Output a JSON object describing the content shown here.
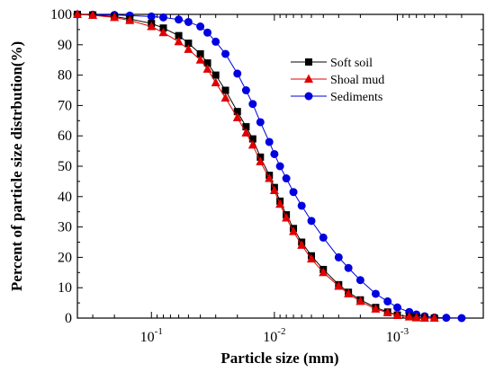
{
  "chart_data": {
    "type": "scatter",
    "title": "",
    "xlabel": "Particle size (mm)",
    "ylabel": "Percent of particle size distrbution(%)",
    "x_scale": "log",
    "x_reversed": true,
    "xlim": [
      0.4,
      0.0002
    ],
    "ylim": [
      0,
      100
    ],
    "x_ticks": [
      {
        "value": 0.1,
        "base": "10",
        "exp": "-1"
      },
      {
        "value": 0.01,
        "base": "10",
        "exp": "-2"
      },
      {
        "value": 0.001,
        "base": "10",
        "exp": "-3"
      }
    ],
    "y_ticks": [
      0,
      10,
      20,
      30,
      40,
      50,
      60,
      70,
      80,
      90,
      100
    ],
    "grid": false,
    "legend_position": "top-right",
    "series": [
      {
        "name": "Soft soil",
        "color": "#000000",
        "marker": "square",
        "x": [
          0.4,
          0.3,
          0.2,
          0.15,
          0.1,
          0.08,
          0.06,
          0.05,
          0.04,
          0.035,
          0.03,
          0.025,
          0.02,
          0.017,
          0.015,
          0.013,
          0.011,
          0.01,
          0.009,
          0.008,
          0.007,
          0.006,
          0.005,
          0.004,
          0.003,
          0.0025,
          0.002,
          0.0015,
          0.0012,
          0.001,
          0.0008,
          0.0007,
          0.0006,
          0.0005
        ],
        "y": [
          100,
          99.8,
          99.3,
          98.5,
          97,
          95.5,
          93,
          90.5,
          87,
          84,
          80,
          75,
          68,
          63,
          59,
          53,
          47,
          43,
          38.5,
          34,
          29.5,
          25,
          20.5,
          16,
          11,
          8.5,
          6,
          3.5,
          2,
          1,
          0.5,
          0.2,
          0.1,
          0
        ]
      },
      {
        "name": "Shoal mud",
        "color": "#e00000",
        "marker": "triangle",
        "x": [
          0.4,
          0.3,
          0.2,
          0.15,
          0.1,
          0.08,
          0.06,
          0.05,
          0.04,
          0.035,
          0.03,
          0.025,
          0.02,
          0.017,
          0.015,
          0.013,
          0.011,
          0.01,
          0.009,
          0.008,
          0.007,
          0.006,
          0.005,
          0.004,
          0.003,
          0.0025,
          0.002,
          0.0015,
          0.0012,
          0.001,
          0.0008,
          0.0007,
          0.0006,
          0.0005
        ],
        "y": [
          100,
          99.7,
          99,
          98,
          96,
          94,
          91,
          88.5,
          85,
          82,
          77.5,
          72.5,
          66,
          61,
          57,
          51.5,
          46,
          42,
          37.5,
          33,
          28.5,
          24,
          19.5,
          15,
          10.5,
          8,
          5.5,
          3,
          1.8,
          0.9,
          0.4,
          0.1,
          0,
          0
        ]
      },
      {
        "name": "Sediments",
        "color": "#0000e0",
        "marker": "circle",
        "x": [
          0.4,
          0.3,
          0.2,
          0.15,
          0.1,
          0.08,
          0.06,
          0.05,
          0.04,
          0.035,
          0.03,
          0.025,
          0.02,
          0.017,
          0.015,
          0.013,
          0.011,
          0.01,
          0.009,
          0.008,
          0.007,
          0.006,
          0.005,
          0.004,
          0.003,
          0.0025,
          0.002,
          0.0015,
          0.0012,
          0.001,
          0.0008,
          0.0007,
          0.0006,
          0.0005,
          0.0004,
          0.0003
        ],
        "y": [
          100,
          99.9,
          99.8,
          99.6,
          99.3,
          99,
          98.3,
          97.5,
          96,
          94,
          91,
          87,
          80.5,
          75,
          70.5,
          64.5,
          58,
          54,
          50,
          46,
          41.5,
          37,
          32,
          26.5,
          20,
          16.5,
          12.5,
          8,
          5.5,
          3.5,
          2,
          1.2,
          0.6,
          0.2,
          0.1,
          0
        ]
      }
    ]
  }
}
